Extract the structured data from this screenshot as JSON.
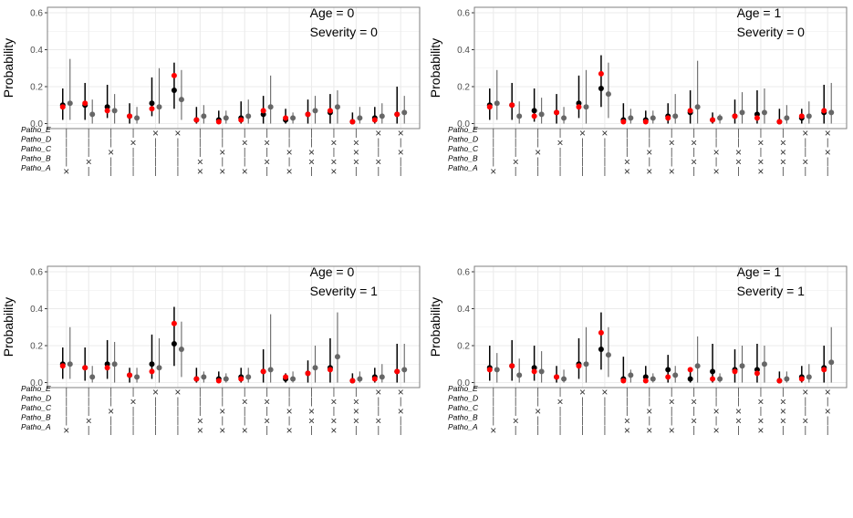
{
  "colors": {
    "series_a": "#000000",
    "series_b": "#ff0000",
    "series_c": "#666666",
    "grid": "#ebebeb",
    "panel_border": "#7f7f7f"
  },
  "combo_labels": [
    "Patho_E",
    "Patho_D",
    "Patho_C",
    "Patho_B",
    "Patho_A"
  ],
  "chart_data": [
    {
      "type": "scatter",
      "panel": "top-left",
      "annotations": [
        "Age = 0",
        "Severity = 0"
      ],
      "ylabel": "Probability",
      "yticks": [
        "0.0",
        "0.2",
        "0.4",
        "0.6"
      ],
      "ylim": [
        0,
        0.6
      ],
      "grid": true,
      "series": [
        {
          "values": [
            0.1,
            0.1,
            0.09,
            0.04,
            0.11,
            0.18,
            0.02,
            0.02,
            0.03,
            0.05,
            0.02,
            0.05,
            0.06,
            0.01,
            0.03,
            0.05
          ],
          "lower": [
            0.02,
            0.02,
            0.03,
            0.0,
            0.04,
            0.08,
            0.0,
            0.0,
            0.0,
            0.0,
            0.0,
            0.0,
            0.0,
            0.0,
            0.0,
            0.0
          ],
          "upper": [
            0.19,
            0.22,
            0.21,
            0.11,
            0.25,
            0.33,
            0.09,
            0.07,
            0.12,
            0.15,
            0.08,
            0.13,
            0.16,
            0.06,
            0.09,
            0.2
          ]
        },
        {
          "values": [
            0.09,
            0.11,
            0.07,
            0.04,
            0.08,
            0.26,
            0.02,
            0.01,
            0.02,
            0.07,
            0.03,
            0.05,
            0.07,
            0.01,
            0.02,
            0.05
          ]
        },
        {
          "values": [
            0.11,
            0.05,
            0.07,
            0.03,
            0.09,
            0.13,
            0.04,
            0.03,
            0.04,
            0.09,
            0.03,
            0.07,
            0.09,
            0.03,
            0.04,
            0.06
          ],
          "lower": [
            0.02,
            0.0,
            0.0,
            0.0,
            0.0,
            0.02,
            0.0,
            0.0,
            0.0,
            0.0,
            0.0,
            0.0,
            0.0,
            0.0,
            0.0,
            0.0
          ],
          "upper": [
            0.35,
            0.13,
            0.16,
            0.09,
            0.3,
            0.29,
            0.1,
            0.07,
            0.13,
            0.26,
            0.06,
            0.15,
            0.18,
            0.09,
            0.11,
            0.15
          ]
        }
      ]
    },
    {
      "type": "scatter",
      "panel": "top-right",
      "annotations": [
        "Age = 1",
        "Severity = 0"
      ],
      "ylabel": "Probability",
      "yticks": [
        "0.0",
        "0.2",
        "0.4",
        "0.6"
      ],
      "ylim": [
        0,
        0.6
      ],
      "grid": true,
      "series": [
        {
          "values": [
            0.1,
            0.1,
            0.07,
            0.06,
            0.11,
            0.19,
            0.02,
            0.02,
            0.04,
            0.06,
            0.02,
            0.04,
            0.05,
            0.01,
            0.03,
            0.06
          ],
          "lower": [
            0.02,
            0.02,
            0.01,
            0.0,
            0.03,
            0.09,
            0.0,
            0.0,
            0.0,
            0.0,
            0.0,
            0.0,
            0.0,
            0.0,
            0.0,
            0.0
          ],
          "upper": [
            0.19,
            0.22,
            0.19,
            0.16,
            0.26,
            0.37,
            0.11,
            0.07,
            0.11,
            0.18,
            0.06,
            0.13,
            0.18,
            0.08,
            0.08,
            0.21
          ]
        },
        {
          "values": [
            0.09,
            0.1,
            0.04,
            0.06,
            0.09,
            0.27,
            0.01,
            0.01,
            0.03,
            0.07,
            0.02,
            0.04,
            0.03,
            0.01,
            0.04,
            0.07
          ]
        },
        {
          "values": [
            0.11,
            0.04,
            0.05,
            0.03,
            0.09,
            0.16,
            0.03,
            0.03,
            0.04,
            0.09,
            0.03,
            0.06,
            0.06,
            0.03,
            0.04,
            0.06
          ],
          "lower": [
            0.02,
            0.0,
            0.0,
            0.0,
            0.0,
            0.03,
            0.0,
            0.0,
            0.0,
            0.0,
            0.0,
            0.0,
            0.0,
            0.0,
            0.0,
            0.0
          ],
          "upper": [
            0.29,
            0.12,
            0.14,
            0.09,
            0.29,
            0.33,
            0.08,
            0.07,
            0.16,
            0.34,
            0.05,
            0.17,
            0.19,
            0.1,
            0.12,
            0.22
          ]
        }
      ]
    },
    {
      "type": "scatter",
      "panel": "bottom-left",
      "annotations": [
        "Age = 0",
        "Severity = 1"
      ],
      "ylabel": "Probability",
      "yticks": [
        "0.0",
        "0.2",
        "0.4",
        "0.6"
      ],
      "ylim": [
        0,
        0.6
      ],
      "grid": true,
      "series": [
        {
          "values": [
            0.1,
            0.08,
            0.1,
            0.04,
            0.1,
            0.21,
            0.02,
            0.02,
            0.03,
            0.06,
            0.02,
            0.05,
            0.08,
            0.01,
            0.03,
            0.06
          ],
          "lower": [
            0.02,
            0.01,
            0.02,
            0.0,
            0.02,
            0.09,
            0.0,
            0.0,
            0.0,
            0.0,
            0.0,
            0.0,
            0.0,
            0.0,
            0.0,
            0.0
          ],
          "upper": [
            0.19,
            0.19,
            0.23,
            0.08,
            0.26,
            0.41,
            0.08,
            0.06,
            0.08,
            0.18,
            0.05,
            0.12,
            0.24,
            0.05,
            0.08,
            0.21
          ]
        },
        {
          "values": [
            0.09,
            0.08,
            0.08,
            0.04,
            0.06,
            0.32,
            0.02,
            0.01,
            0.02,
            0.06,
            0.03,
            0.05,
            0.07,
            0.01,
            0.02,
            0.06
          ]
        },
        {
          "values": [
            0.1,
            0.03,
            0.1,
            0.03,
            0.08,
            0.18,
            0.03,
            0.02,
            0.03,
            0.07,
            0.02,
            0.08,
            0.14,
            0.02,
            0.03,
            0.07
          ],
          "lower": [
            0.02,
            0.0,
            0.0,
            0.0,
            0.0,
            0.03,
            0.0,
            0.0,
            0.0,
            0.0,
            0.0,
            0.0,
            0.0,
            0.0,
            0.0,
            0.0
          ],
          "upper": [
            0.3,
            0.09,
            0.22,
            0.08,
            0.24,
            0.33,
            0.06,
            0.05,
            0.08,
            0.37,
            0.06,
            0.2,
            0.38,
            0.06,
            0.1,
            0.21
          ]
        }
      ]
    },
    {
      "type": "scatter",
      "panel": "bottom-right",
      "annotations": [
        "Age = 1",
        "Severity = 1"
      ],
      "ylabel": "Probability",
      "yticks": [
        "0.0",
        "0.2",
        "0.4",
        "0.6"
      ],
      "ylim": [
        0,
        0.6
      ],
      "grid": true,
      "series": [
        {
          "values": [
            0.08,
            0.09,
            0.08,
            0.03,
            0.1,
            0.18,
            0.02,
            0.03,
            0.07,
            0.02,
            0.06,
            0.07,
            0.07,
            0.01,
            0.03,
            0.08
          ],
          "lower": [
            0.01,
            0.01,
            0.01,
            0.0,
            0.02,
            0.07,
            0.0,
            0.0,
            0.0,
            0.0,
            0.0,
            0.0,
            0.0,
            0.0,
            0.0,
            0.0
          ],
          "upper": [
            0.2,
            0.23,
            0.2,
            0.09,
            0.24,
            0.38,
            0.14,
            0.09,
            0.15,
            0.07,
            0.21,
            0.18,
            0.21,
            0.06,
            0.09,
            0.2
          ]
        },
        {
          "values": [
            0.07,
            0.09,
            0.06,
            0.03,
            0.09,
            0.27,
            0.01,
            0.01,
            0.03,
            0.07,
            0.02,
            0.06,
            0.05,
            0.01,
            0.02,
            0.07
          ]
        },
        {
          "values": [
            0.07,
            0.04,
            0.06,
            0.02,
            0.1,
            0.15,
            0.04,
            0.02,
            0.04,
            0.09,
            0.02,
            0.09,
            0.1,
            0.02,
            0.03,
            0.11
          ],
          "lower": [
            0.0,
            0.0,
            0.0,
            0.0,
            0.0,
            0.03,
            0.0,
            0.0,
            0.0,
            0.0,
            0.0,
            0.0,
            0.0,
            0.0,
            0.0,
            0.0
          ],
          "upper": [
            0.16,
            0.13,
            0.17,
            0.07,
            0.3,
            0.3,
            0.07,
            0.05,
            0.09,
            0.25,
            0.05,
            0.2,
            0.2,
            0.06,
            0.1,
            0.3
          ]
        }
      ]
    }
  ],
  "combo_matrix_rows": [
    [
      "-",
      "-",
      "-",
      "-",
      "x",
      "x",
      "-",
      "-",
      "-",
      "-",
      "-",
      "-",
      "-",
      "-",
      "x",
      "x"
    ],
    [
      "-",
      "-",
      "-",
      "x",
      "-",
      "-",
      "-",
      "-",
      "x",
      "x",
      "-",
      "-",
      "x",
      "x",
      "-",
      "-"
    ],
    [
      "-",
      "-",
      "x",
      "-",
      "-",
      "-",
      "-",
      "x",
      "-",
      "-",
      "x",
      "x",
      "-",
      "x",
      "-",
      "x"
    ],
    [
      "-",
      "x",
      "-",
      "-",
      "-",
      "-",
      "x",
      "-",
      "-",
      "x",
      "-",
      "x",
      "x",
      "x",
      "x",
      "-"
    ],
    [
      "x",
      "-",
      "-",
      "-",
      "-",
      "-",
      "x",
      "x",
      "x",
      "-",
      "x",
      "-",
      "x",
      "-",
      "-",
      "-"
    ]
  ]
}
